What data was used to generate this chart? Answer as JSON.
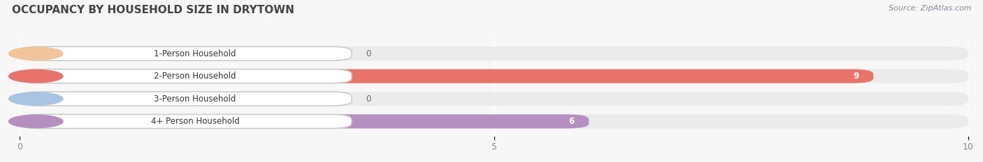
{
  "title": "OCCUPANCY BY HOUSEHOLD SIZE IN DRYTOWN",
  "source": "Source: ZipAtlas.com",
  "categories": [
    "1-Person Household",
    "2-Person Household",
    "3-Person Household",
    "4+ Person Household"
  ],
  "values": [
    0,
    9,
    0,
    6
  ],
  "bar_colors": [
    "#f2c49b",
    "#e8736a",
    "#a8c4e0",
    "#b58fc0"
  ],
  "xlim": [
    0,
    10
  ],
  "xticks": [
    0,
    5,
    10
  ],
  "background_color": "#f7f7f7",
  "bar_bg_color": "#ebebeb",
  "title_color": "#444444",
  "source_color": "#888899",
  "tick_color": "#888888",
  "zero_label_color": "#666666",
  "val_label_color": "#ffffff"
}
